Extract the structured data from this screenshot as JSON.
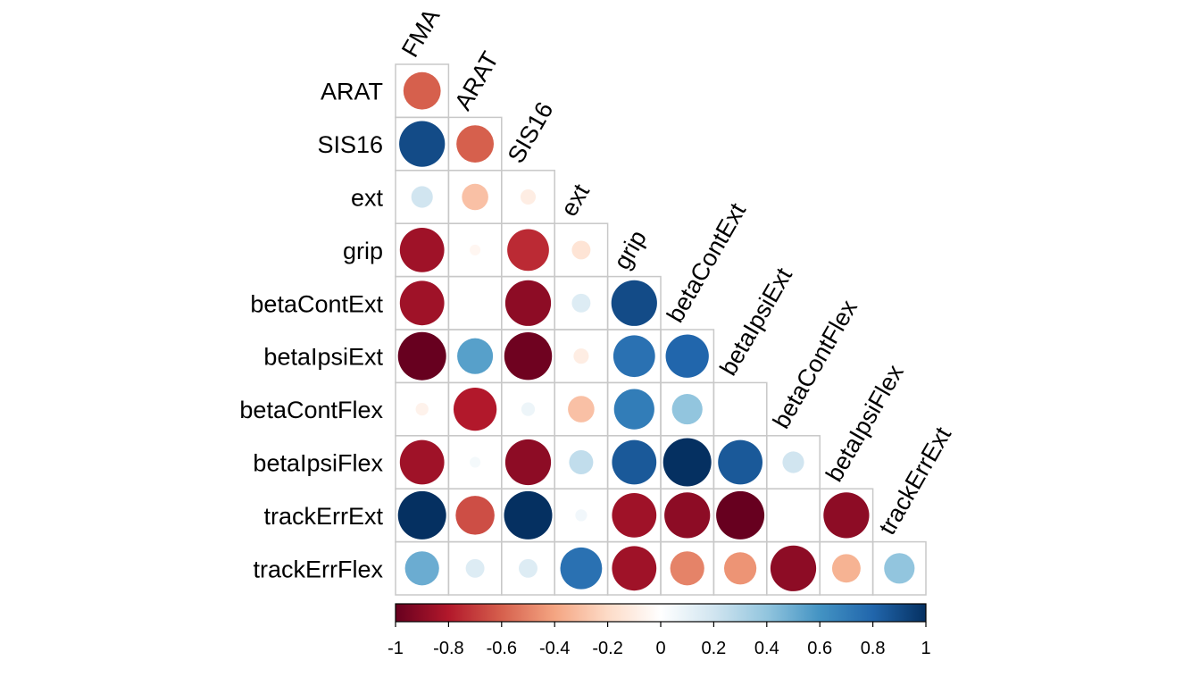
{
  "chart_data": {
    "type": "correlation-matrix",
    "variables": [
      "FMA",
      "ARAT",
      "SIS16",
      "ext",
      "grip",
      "betaContExt",
      "betaIpsiExt",
      "betaContFlex",
      "betaIpsiFlex",
      "trackErrExt",
      "trackErrFlex"
    ],
    "row_labels": [
      "ARAT",
      "SIS16",
      "ext",
      "grip",
      "betaContExt",
      "betaIpsiExt",
      "betaContFlex",
      "betaIpsiFlex",
      "trackErrExt",
      "trackErrFlex"
    ],
    "column_labels": [
      "FMA",
      "ARAT",
      "SIS16",
      "ext",
      "grip",
      "betaContExt",
      "betaIpsiExt",
      "betaContFlex",
      "betaIpsiFlex",
      "trackErrExt"
    ],
    "layout": "lower-triangle",
    "correlations": [
      [
        -0.6
      ],
      [
        0.9,
        -0.6
      ],
      [
        0.2,
        -0.3,
        -0.1
      ],
      [
        -0.85,
        -0.05,
        -0.75,
        -0.15
      ],
      [
        -0.85,
        0.0,
        -0.9,
        0.15,
        0.9
      ],
      [
        -1.0,
        0.55,
        -0.98,
        -0.1,
        0.75,
        0.8
      ],
      [
        -0.07,
        -0.8,
        0.08,
        -0.3,
        0.7,
        0.4,
        0.0
      ],
      [
        -0.85,
        0.05,
        -0.9,
        0.25,
        0.85,
        1.0,
        0.85,
        0.2
      ],
      [
        1.0,
        -0.65,
        1.0,
        0.06,
        -0.85,
        -0.9,
        -1.0,
        0.0,
        -0.9
      ],
      [
        0.5,
        0.15,
        0.15,
        0.75,
        -0.85,
        -0.5,
        -0.45,
        -0.9,
        -0.35,
        0.4
      ]
    ],
    "colorbar": {
      "range": [
        -1,
        1
      ],
      "ticks": [
        "-1",
        "-0.8",
        "-0.6",
        "-0.4",
        "-0.2",
        "0",
        "0.2",
        "0.4",
        "0.6",
        "0.8",
        "1"
      ],
      "colors": [
        "#67001F",
        "#B2182B",
        "#D6604D",
        "#F4A582",
        "#FDDBC7",
        "#FFFFFF",
        "#D1E5F0",
        "#92C5DE",
        "#4393C3",
        "#2166AC",
        "#053061"
      ]
    },
    "legend": "bottom",
    "grid": true
  }
}
